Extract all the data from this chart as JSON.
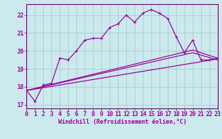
{
  "xlabel": "Windchill (Refroidissement éolien,°C)",
  "background_color": "#cce9ee",
  "grid_color": "#aacccc",
  "line_color": "#990099",
  "spine_color": "#660066",
  "x_ticks": [
    0,
    1,
    2,
    3,
    4,
    5,
    6,
    7,
    8,
    9,
    10,
    11,
    12,
    13,
    14,
    15,
    16,
    17,
    18,
    19,
    20,
    21,
    22,
    23
  ],
  "y_ticks": [
    17,
    18,
    19,
    20,
    21,
    22
  ],
  "xlim": [
    0,
    23
  ],
  "ylim": [
    16.8,
    22.6
  ],
  "curve1_x": [
    0,
    1,
    2,
    3,
    4,
    5,
    6,
    7,
    8,
    9,
    10,
    11,
    12,
    13,
    14,
    15,
    16,
    17,
    18,
    19,
    20,
    21,
    22,
    23
  ],
  "curve1_y": [
    17.8,
    17.2,
    18.1,
    18.2,
    19.6,
    19.5,
    20.0,
    20.6,
    20.7,
    20.7,
    21.3,
    21.5,
    22.0,
    21.6,
    22.1,
    22.3,
    22.1,
    21.8,
    20.8,
    19.9,
    20.6,
    19.5,
    19.5,
    19.6
  ],
  "curve2_x": [
    0,
    23
  ],
  "curve2_y": [
    17.8,
    19.55
  ],
  "curve3_x": [
    0,
    20,
    23
  ],
  "curve3_y": [
    17.8,
    20.05,
    19.6
  ],
  "curve4_x": [
    0,
    20,
    23
  ],
  "curve4_y": [
    17.8,
    19.9,
    19.5
  ],
  "tick_fontsize": 6,
  "label_fontsize": 6
}
